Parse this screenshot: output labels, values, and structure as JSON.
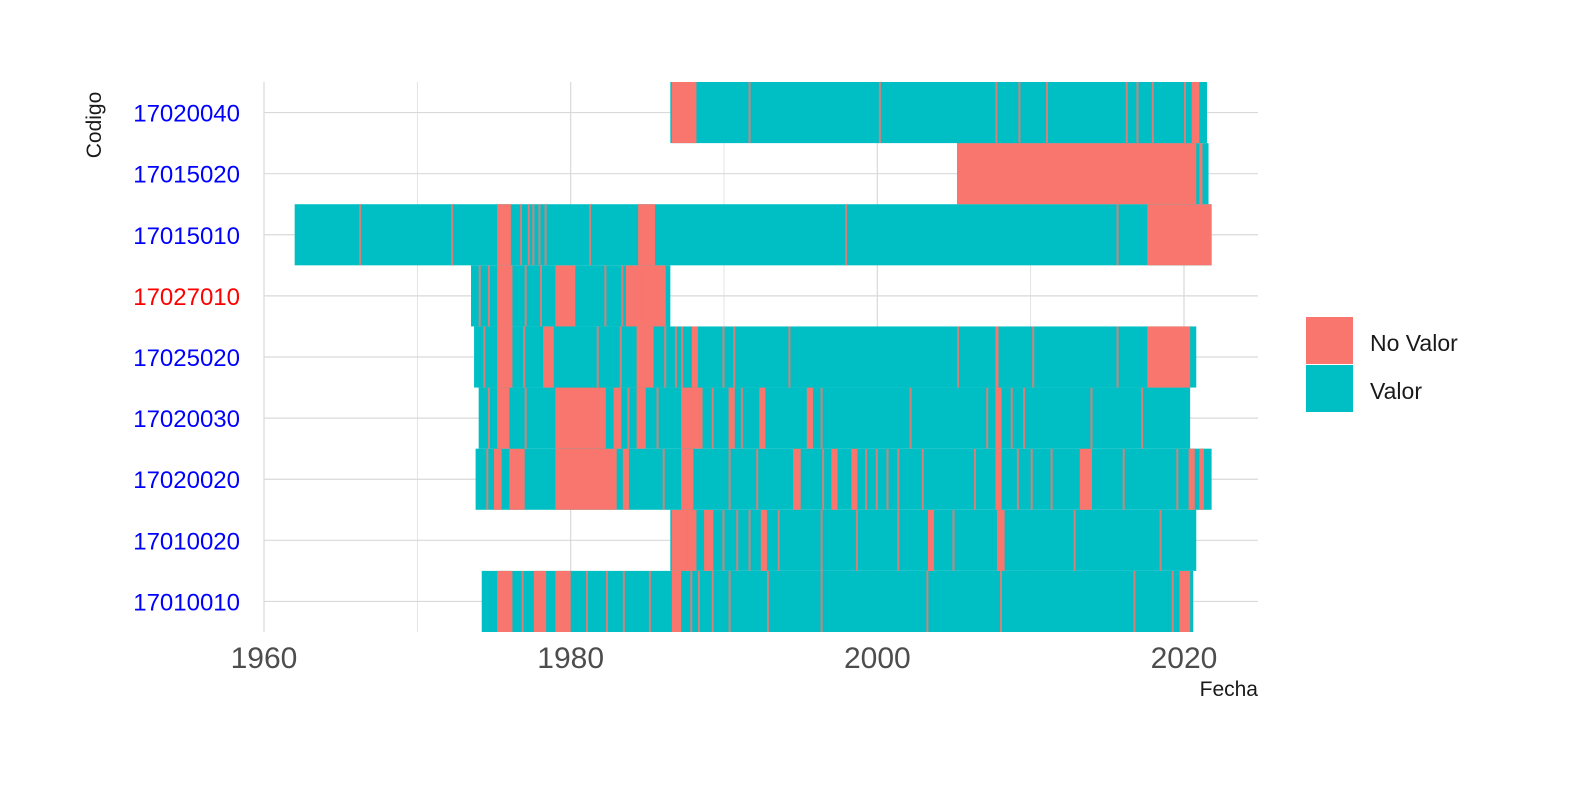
{
  "chart_data": {
    "type": "timeline-tile",
    "title": "",
    "xlabel": "Fecha",
    "ylabel": "Codigo",
    "xlim": [
      1960,
      2024.5
    ],
    "x_ticks": [
      1960,
      1980,
      2000,
      2020
    ],
    "x_tick_labels": [
      "1960",
      "1980",
      "2000",
      "2020"
    ],
    "grid": true,
    "legend": {
      "position": "right",
      "entries": [
        {
          "key": "no_valor",
          "label": "No Valor",
          "color": "#F8766D"
        },
        {
          "key": "valor",
          "label": "Valor",
          "color": "#00BFC4"
        }
      ]
    },
    "categories": [
      {
        "code": "17010010",
        "label_color": "#0000FF",
        "start": 1974.2,
        "end": 2020.6,
        "no_valor": [
          [
            1975.2,
            1976.2
          ],
          [
            1977.6,
            1978.4
          ],
          [
            1979.0,
            1980.0
          ],
          [
            1986.6,
            1987.2
          ],
          [
            2019.7,
            2020.4
          ]
        ],
        "gaps": [
          1976.8,
          1981.0,
          1982.3,
          1983.4,
          1985.1,
          1987.8,
          1988.3,
          1989.2,
          1990.3,
          1992.8,
          1996.3,
          2003.2,
          2008.0,
          2016.7,
          2019.2
        ]
      },
      {
        "code": "17010020",
        "label_color": "#0000FF",
        "start": 1986.5,
        "end": 2020.8,
        "no_valor": [
          [
            1986.6,
            1988.2
          ],
          [
            1988.7,
            1989.3
          ],
          [
            1992.4,
            1992.8
          ],
          [
            2003.3,
            2003.7
          ],
          [
            2007.8,
            2008.3
          ]
        ],
        "gaps": [
          1987.5,
          1989.9,
          1990.8,
          1991.6,
          1993.5,
          1996.3,
          1998.6,
          2001.3,
          2004.9,
          2012.8,
          2018.4
        ]
      },
      {
        "code": "17020020",
        "label_color": "#0000FF",
        "start": 1973.8,
        "end": 2021.8,
        "no_valor": [
          [
            1975.0,
            1975.5
          ],
          [
            1976.0,
            1977.0
          ],
          [
            1979.0,
            1983.0
          ],
          [
            1983.4,
            1983.8
          ],
          [
            1987.2,
            1988.0
          ],
          [
            1994.5,
            1995.0
          ],
          [
            1997.0,
            1997.4
          ],
          [
            1998.3,
            1998.7
          ],
          [
            2007.7,
            2008.1
          ],
          [
            2013.2,
            2014.0
          ],
          [
            2020.3,
            2020.7
          ],
          [
            2021.0,
            2021.3
          ]
        ],
        "gaps": [
          1974.5,
          1986.0,
          1990.3,
          1992.1,
          1996.4,
          1999.2,
          1999.9,
          2000.6,
          2001.3,
          2002.9,
          2006.3,
          2009.1,
          2010.0,
          2011.3,
          2016.0,
          2019.5
        ]
      },
      {
        "code": "17020030",
        "label_color": "#0000FF",
        "start": 1974.0,
        "end": 2020.4,
        "no_valor": [
          [
            1975.2,
            1976.0
          ],
          [
            1979.0,
            1982.3
          ],
          [
            1982.8,
            1983.3
          ],
          [
            1984.3,
            1984.9
          ],
          [
            1987.2,
            1988.6
          ],
          [
            1990.3,
            1990.7
          ],
          [
            1992.3,
            1992.7
          ],
          [
            1995.4,
            1995.8
          ],
          [
            2007.7,
            2008.1
          ]
        ],
        "gaps": [
          1974.6,
          1977.0,
          1983.7,
          1985.6,
          1989.2,
          1991.1,
          1996.3,
          2002.1,
          2007.1,
          2008.7,
          2009.5,
          2013.9,
          2017.2
        ]
      },
      {
        "code": "17025020",
        "label_color": "#0000FF",
        "start": 1973.7,
        "end": 2020.8,
        "no_valor": [
          [
            1975.2,
            1976.2
          ],
          [
            1978.2,
            1978.9
          ],
          [
            1984.3,
            1985.4
          ],
          [
            1987.9,
            1988.3
          ],
          [
            2007.7,
            2007.9
          ],
          [
            2017.6,
            2020.4
          ]
        ],
        "gaps": [
          1974.3,
          1976.9,
          1981.7,
          1983.2,
          1986.1,
          1986.8,
          1987.2,
          1989.9,
          1990.6,
          1994.2,
          2005.2,
          2010.1,
          2015.6
        ]
      },
      {
        "code": "17027010",
        "label_color": "#FF0000",
        "start": 1973.5,
        "end": 1986.5,
        "no_valor": [
          [
            1975.2,
            1976.2
          ],
          [
            1979.0,
            1980.3
          ],
          [
            1983.6,
            1986.2
          ]
        ],
        "gaps": [
          1974.0,
          1974.6,
          1977.0,
          1978.0,
          1982.2,
          1983.3,
          1984.6,
          1985.5
        ]
      },
      {
        "code": "17015010",
        "label_color": "#0000FF",
        "start": 1962.0,
        "end": 2021.8,
        "no_valor": [
          [
            1975.2,
            1976.1
          ],
          [
            1984.4,
            1985.5
          ],
          [
            2017.6,
            2021.8
          ]
        ],
        "gaps": [
          1966.2,
          1972.2,
          1976.7,
          1977.2,
          1977.5,
          1977.9,
          1978.3,
          1981.2,
          1997.9,
          2015.6
        ]
      },
      {
        "code": "17015020",
        "label_color": "#0000FF",
        "start": 2005.2,
        "end": 2021.6,
        "no_valor": [
          [
            2005.2,
            2020.8
          ],
          [
            2021.0,
            2021.2
          ]
        ],
        "gaps": []
      },
      {
        "code": "17020040",
        "label_color": "#0000FF",
        "start": 1986.5,
        "end": 2021.5,
        "no_valor": [
          [
            1986.6,
            1988.2
          ],
          [
            2020.5,
            2021.0
          ]
        ],
        "gaps": [
          1991.6,
          2000.1,
          2007.7,
          2009.2,
          2011.0,
          2016.2,
          2016.9,
          2017.9,
          2020.0
        ]
      }
    ]
  }
}
